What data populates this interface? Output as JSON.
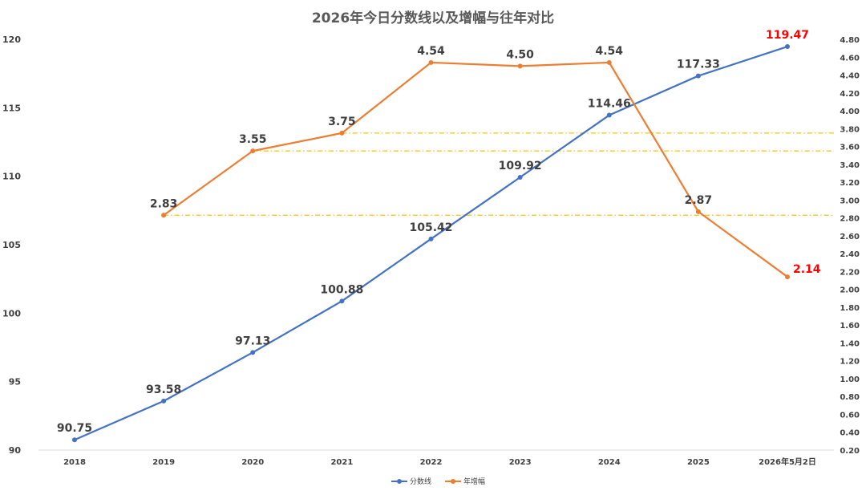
{
  "chart_data": {
    "type": "line",
    "title": "2026年今日分数线以及增幅与往年对比",
    "categories": [
      "2018",
      "2019",
      "2020",
      "2021",
      "2022",
      "2023",
      "2024",
      "2025",
      "2026年5月2日"
    ],
    "series": [
      {
        "name": "分数线",
        "axis": "left",
        "color": "#4472c4",
        "values": [
          90.75,
          93.58,
          97.13,
          100.88,
          105.42,
          109.92,
          114.46,
          117.33,
          119.47
        ],
        "labels": [
          "90.75",
          "93.58",
          "97.13",
          "100.88",
          "105.42",
          "109.92",
          "114.46",
          "117.33",
          "119.47"
        ],
        "highlight_last": true
      },
      {
        "name": "年增幅",
        "axis": "right",
        "color": "#ed7d31",
        "values": [
          null,
          2.83,
          3.55,
          3.75,
          4.54,
          4.5,
          4.54,
          2.87,
          2.14
        ],
        "labels": [
          "",
          "2.83",
          "3.55",
          "3.75",
          "4.54",
          "4.50",
          "4.54",
          "2.87",
          "2.14"
        ],
        "highlight_last": true
      }
    ],
    "left_axis": {
      "ylim": [
        90,
        120
      ],
      "ticks": [
        "90",
        "95",
        "100",
        "105",
        "110",
        "115",
        "120"
      ]
    },
    "right_axis": {
      "ylim": [
        0.2,
        4.8
      ],
      "ticks": [
        "0.20",
        "0.40",
        "0.60",
        "0.80",
        "1.00",
        "1.20",
        "1.40",
        "1.60",
        "1.80",
        "2.00",
        "2.20",
        "2.40",
        "2.60",
        "2.80",
        "3.00",
        "3.20",
        "3.40",
        "3.60",
        "3.80",
        "4.00",
        "4.20",
        "4.40",
        "4.60",
        "4.80"
      ]
    },
    "reference_lines": [
      {
        "axis": "right",
        "value": 2.83,
        "from_category": 1
      },
      {
        "axis": "right",
        "value": 3.55,
        "from_category": 2
      },
      {
        "axis": "right",
        "value": 3.75,
        "from_category": 3
      }
    ],
    "reference_color": "#ffc000",
    "highlight_color": "#ff0000",
    "legend_position": "bottom",
    "grid": false
  }
}
